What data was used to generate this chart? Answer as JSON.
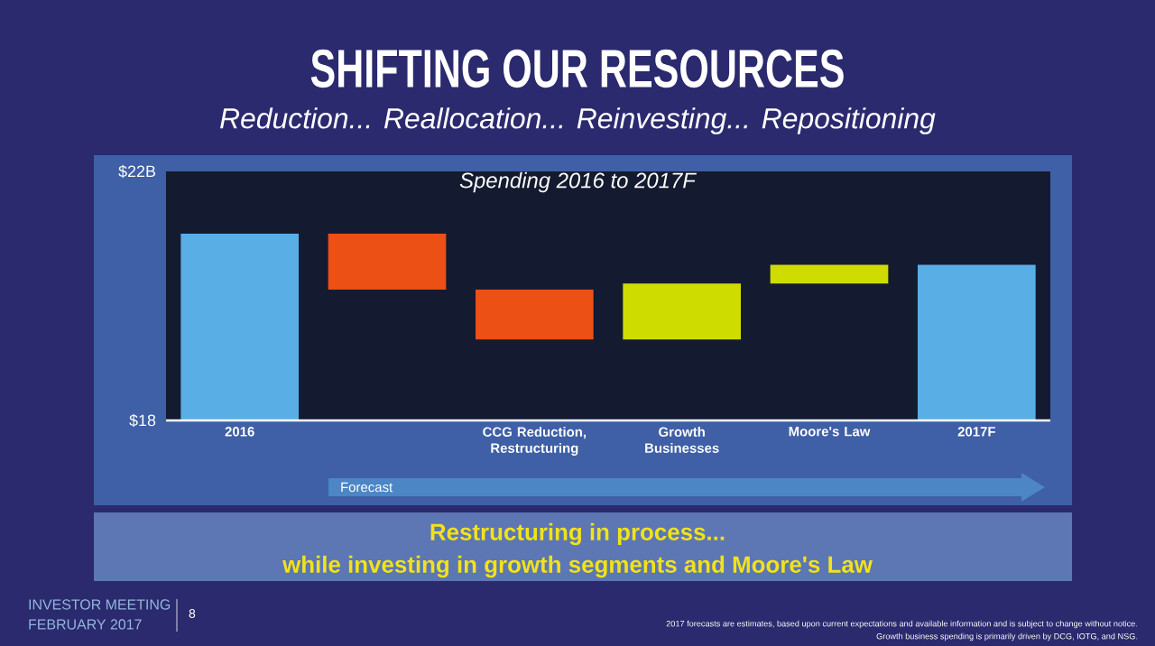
{
  "chart_data": {
    "type": "bar",
    "title": "SHIFTING OUR RESOURCES",
    "subtitle": "Reduction... Reallocation... Reinvesting... Repositioning",
    "categories": [
      "2016",
      null,
      "CCG Reduction, Restructuring",
      "Growth Businesses",
      "Moore's Law",
      "2017F"
    ],
    "values": [
      3.0,
      -0.9,
      -0.8,
      0.9,
      0.3,
      2.5
    ],
    "base": [
      18,
      21.0,
      20.1,
      19.3,
      20.2,
      18
    ],
    "colors": [
      "#5aaee6",
      "#ec5014",
      "#ec5014",
      "#cfdc00",
      "#cfdc00",
      "#5aaee6"
    ],
    "ylim": [
      18,
      22
    ],
    "yticks": [
      {
        "value": 18,
        "label": "$18"
      },
      {
        "value": 22,
        "label": "$22B"
      }
    ],
    "grid": false,
    "annotations": [
      "Spending 2016 to 2017F",
      "Forecast",
      "Restructuring in process...",
      "while investing in growth segments and Moore's Law",
      "INVESTOR MEETING",
      "FEBRUARY 2017",
      "8",
      "2017 forecasts are estimates, based upon current expectations and available information and is subject to change without notice.",
      "Growth business spending is primarily driven by DCG, IOTG, and NSG."
    ]
  }
}
